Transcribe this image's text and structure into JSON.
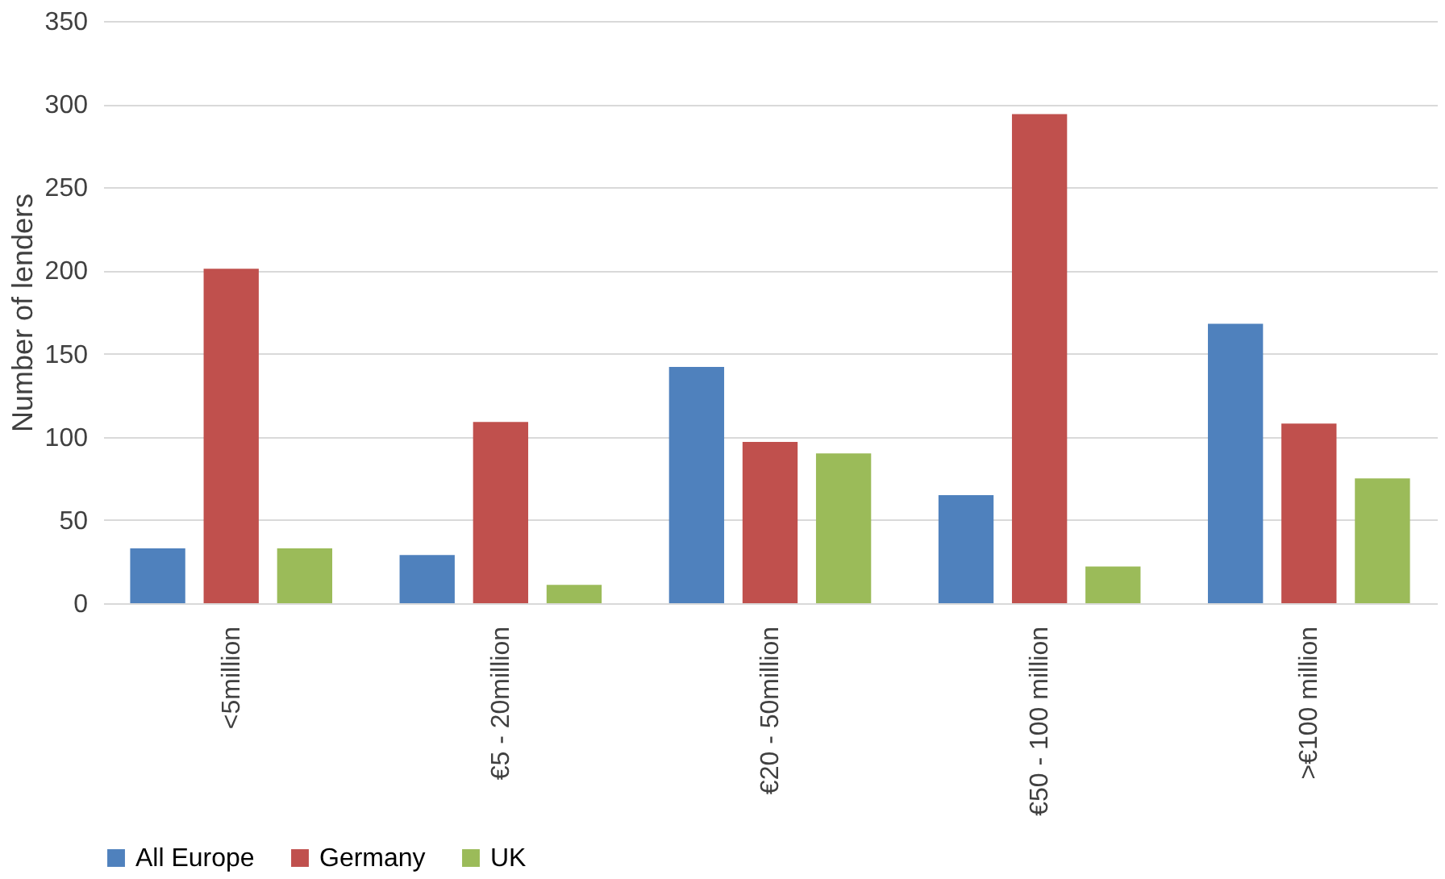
{
  "chart_data": {
    "type": "bar",
    "ylabel": "Number of lenders",
    "categories": [
      "<5million",
      "€5 - 20million",
      "€20 - 50million",
      "€50 - 100 million",
      ">€100 million"
    ],
    "series": [
      {
        "name": "All Europe",
        "color": "#4f81bd",
        "values": [
          33,
          29,
          142,
          65,
          168
        ]
      },
      {
        "name": "Germany",
        "color": "#c0504d",
        "values": [
          201,
          109,
          97,
          294,
          108
        ]
      },
      {
        "name": "UK",
        "color": "#9bbb59",
        "values": [
          33,
          11,
          90,
          22,
          75
        ]
      }
    ],
    "ylim": [
      0,
      350
    ],
    "yticks": [
      0,
      50,
      100,
      150,
      200,
      250,
      300,
      350
    ],
    "grid": "y",
    "legend": "bottom"
  }
}
